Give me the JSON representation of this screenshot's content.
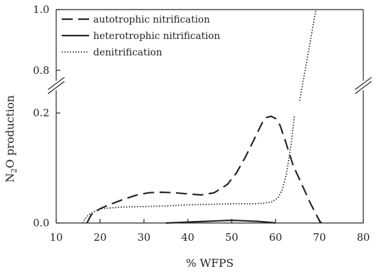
{
  "chart_data": {
    "type": "line",
    "xlabel": "% WFPS",
    "ylabel_main": "N",
    "ylabel_sub": "2",
    "ylabel_rest": "O production",
    "xlim": [
      10,
      80
    ],
    "x_ticks": [
      "10",
      "20",
      "30",
      "40",
      "50",
      "60",
      "70",
      "80"
    ],
    "y_ticks_lower": [
      "0.0",
      "0.2"
    ],
    "y_ticks_upper": [
      "0.8",
      "1.0"
    ],
    "y_axis_break": [
      0.25,
      0.75
    ],
    "series": [
      {
        "name": "autotrophic nitrification",
        "style": "dashed",
        "x": [
          17,
          18,
          20,
          22,
          25,
          28,
          31,
          34,
          37,
          40,
          43,
          46,
          49,
          51,
          53,
          55,
          57,
          58,
          59,
          60,
          61,
          62,
          63,
          64,
          66,
          68,
          70,
          70.5
        ],
        "y": [
          0.0,
          0.015,
          0.026,
          0.033,
          0.042,
          0.05,
          0.055,
          0.056,
          0.055,
          0.053,
          0.051,
          0.055,
          0.07,
          0.09,
          0.118,
          0.15,
          0.183,
          0.192,
          0.194,
          0.19,
          0.178,
          0.155,
          0.13,
          0.105,
          0.07,
          0.035,
          0.004,
          0.0
        ]
      },
      {
        "name": "heterotrophic nitrification",
        "style": "solid",
        "x": [
          35,
          38,
          41,
          44,
          47,
          50,
          53,
          56,
          59,
          60
        ],
        "y": [
          0.0,
          0.001,
          0.002,
          0.003,
          0.004,
          0.005,
          0.004,
          0.003,
          0.001,
          0.0
        ]
      },
      {
        "name": "denitrification",
        "style": "dotted",
        "x": [
          16,
          17,
          18,
          19,
          20,
          25,
          30,
          35,
          40,
          45,
          50,
          55,
          57,
          59,
          60.5,
          61.5,
          62.5,
          63.5,
          64.3,
          65.5,
          69.2
        ],
        "y": [
          0.0,
          0.012,
          0.018,
          0.022,
          0.026,
          0.029,
          0.03,
          0.031,
          0.033,
          0.034,
          0.035,
          0.035,
          0.036,
          0.038,
          0.045,
          0.06,
          0.09,
          0.14,
          0.195,
          0.7,
          1.0
        ]
      }
    ],
    "legend_position": "top-left",
    "grid": false
  }
}
